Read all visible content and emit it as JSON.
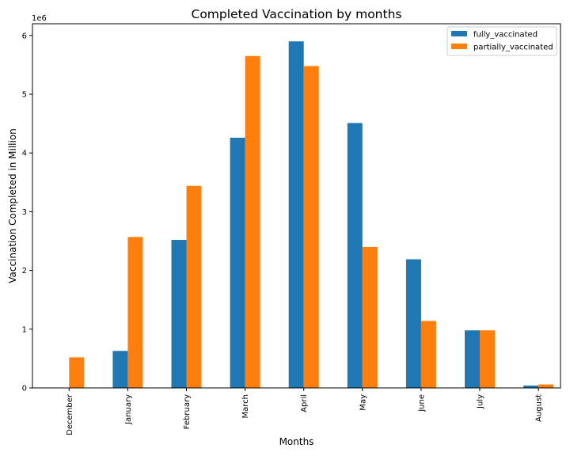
{
  "chart_data": {
    "type": "bar",
    "title": "Completed Vaccination by months",
    "xlabel": "Months",
    "ylabel": "Vaccination Completed in Million",
    "y_offset_label": "1e6",
    "categories": [
      "December",
      "January",
      "February",
      "March",
      "April",
      "May",
      "June",
      "July",
      "August"
    ],
    "series": [
      {
        "name": "fully_vaccinated",
        "color": "#1f77b4",
        "values": [
          0,
          630000,
          2520000,
          4260000,
          5900000,
          4510000,
          2190000,
          980000,
          40000
        ]
      },
      {
        "name": "partially_vaccinated",
        "color": "#ff7f0e",
        "values": [
          520000,
          2570000,
          3440000,
          5650000,
          5480000,
          2400000,
          1140000,
          980000,
          60000
        ]
      }
    ],
    "ylim": [
      0,
      6200000
    ],
    "yticks": [
      0,
      1000000,
      2000000,
      3000000,
      4000000,
      5000000,
      6000000
    ],
    "ytick_labels": [
      "0",
      "1",
      "2",
      "3",
      "4",
      "5",
      "6"
    ],
    "grid": false,
    "legend_position": "top-right"
  }
}
